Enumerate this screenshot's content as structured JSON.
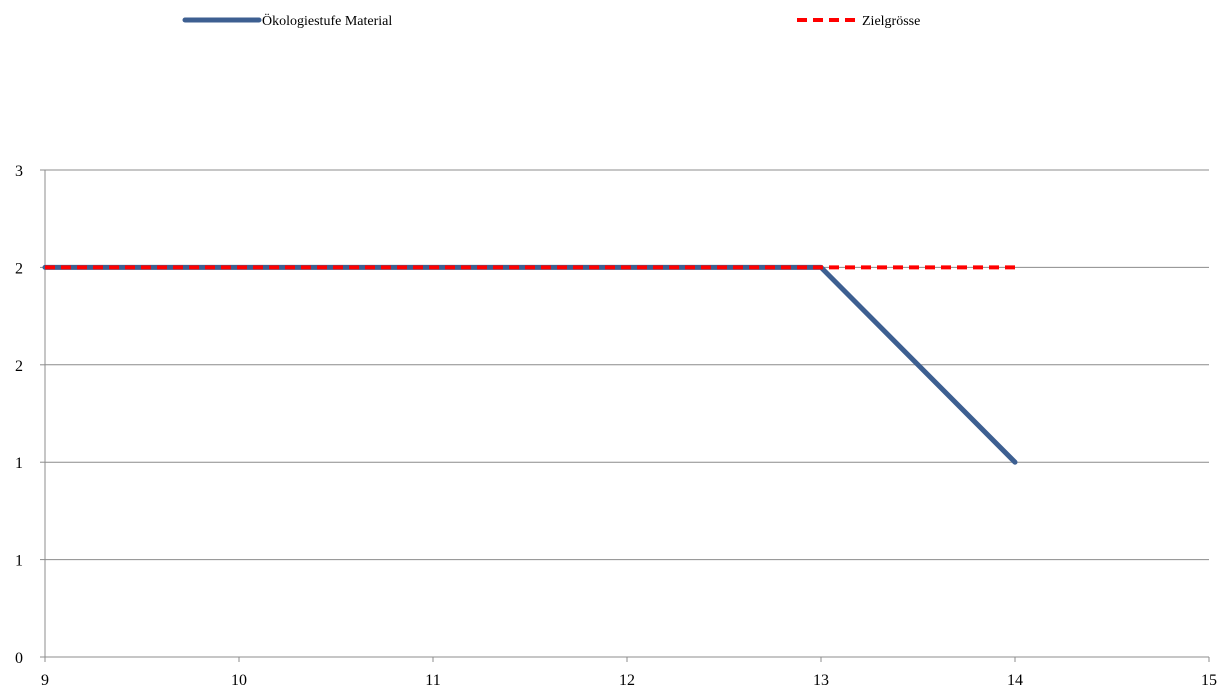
{
  "chart_data": {
    "type": "line",
    "title": "",
    "xlabel": "",
    "ylabel": "",
    "xlim": [
      9,
      15
    ],
    "ylim": [
      0,
      2.5
    ],
    "x_ticks": [
      9,
      10,
      11,
      12,
      13,
      14,
      15
    ],
    "x_tick_labels": [
      "9",
      "10",
      "11",
      "12",
      "13",
      "14",
      "15"
    ],
    "y_ticks": [
      0,
      0.5,
      1,
      1.5,
      2,
      2.5
    ],
    "y_tick_labels": [
      "0",
      "1",
      "1",
      "2",
      "2",
      "3"
    ],
    "grid": "horizontal",
    "legend": "top",
    "series": [
      {
        "name": "Ökologiestufe Material",
        "color": "#3d5f91",
        "style": "solid",
        "points": [
          [
            9,
            2
          ],
          [
            10,
            2
          ],
          [
            11,
            2
          ],
          [
            12,
            2
          ],
          [
            13,
            2
          ],
          [
            14,
            1
          ]
        ]
      },
      {
        "name": "Zielgrösse",
        "color": "#ff0000",
        "style": "dashed",
        "points": [
          [
            9,
            2
          ],
          [
            10,
            2
          ],
          [
            11,
            2
          ],
          [
            12,
            2
          ],
          [
            13,
            2
          ],
          [
            14,
            2
          ]
        ]
      }
    ]
  }
}
